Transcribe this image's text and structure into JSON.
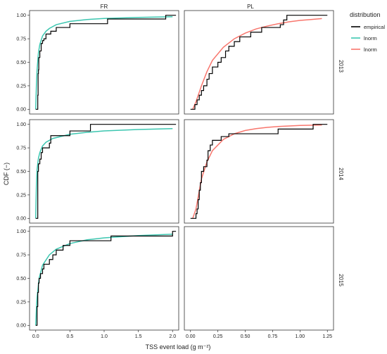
{
  "chart_data": {
    "type": "line",
    "xlabel": "TSS event load (g m⁻²)",
    "ylabel": "CDF (−)",
    "columns": [
      "FR",
      "PL"
    ],
    "rows": [
      "2013",
      "2014",
      "2015"
    ],
    "legend": {
      "title": "distribution",
      "placement": "right",
      "entries": [
        {
          "label": "empirical",
          "color": "#000000"
        },
        {
          "label": "lnorm",
          "color": "#3cc6b0"
        },
        {
          "label": "lnorm",
          "color": "#f8766d"
        }
      ]
    },
    "y_ticks": [
      "0.00",
      "0.25",
      "0.50",
      "0.75",
      "1.00"
    ],
    "ylim": [
      0,
      1
    ],
    "FR_x_ticks": [
      "0.0",
      "0.5",
      "1.0",
      "1.5",
      "2.0"
    ],
    "FR_xlim": [
      0,
      2
    ],
    "PL_x_ticks": [
      "0.00",
      "0.25",
      "0.50",
      "0.75",
      "1.00",
      "1.25"
    ],
    "PL_xlim": [
      0,
      1.25
    ],
    "panels": [
      {
        "column": "FR",
        "row": "2013",
        "fit_color": "#3cc6b0",
        "empirical": [
          [
            0.0,
            0.0
          ],
          [
            0.03,
            0.15
          ],
          [
            0.035,
            0.38
          ],
          [
            0.04,
            0.42
          ],
          [
            0.045,
            0.55
          ],
          [
            0.06,
            0.62
          ],
          [
            0.08,
            0.7
          ],
          [
            0.1,
            0.73
          ],
          [
            0.12,
            0.75
          ],
          [
            0.15,
            0.8
          ],
          [
            0.22,
            0.83
          ],
          [
            0.3,
            0.87
          ],
          [
            0.5,
            0.91
          ],
          [
            0.85,
            0.91
          ],
          [
            1.05,
            0.96
          ],
          [
            1.9,
            1.0
          ],
          [
            2.05,
            1.0
          ]
        ],
        "fit": [
          [
            0.0,
            0.0
          ],
          [
            0.01,
            0.25
          ],
          [
            0.02,
            0.42
          ],
          [
            0.04,
            0.6
          ],
          [
            0.06,
            0.69
          ],
          [
            0.1,
            0.78
          ],
          [
            0.15,
            0.83
          ],
          [
            0.2,
            0.86
          ],
          [
            0.3,
            0.9
          ],
          [
            0.5,
            0.935
          ],
          [
            0.75,
            0.955
          ],
          [
            1.0,
            0.966
          ],
          [
            1.5,
            0.977
          ],
          [
            2.0,
            0.985
          ]
        ]
      },
      {
        "column": "PL",
        "row": "2013",
        "fit_color": "#f8766d",
        "empirical": [
          [
            0.0,
            0.0
          ],
          [
            0.04,
            0.05
          ],
          [
            0.06,
            0.1
          ],
          [
            0.08,
            0.15
          ],
          [
            0.1,
            0.2
          ],
          [
            0.12,
            0.25
          ],
          [
            0.15,
            0.32
          ],
          [
            0.17,
            0.38
          ],
          [
            0.2,
            0.45
          ],
          [
            0.25,
            0.5
          ],
          [
            0.28,
            0.55
          ],
          [
            0.32,
            0.62
          ],
          [
            0.35,
            0.67
          ],
          [
            0.4,
            0.72
          ],
          [
            0.45,
            0.77
          ],
          [
            0.55,
            0.82
          ],
          [
            0.65,
            0.87
          ],
          [
            0.82,
            0.9
          ],
          [
            0.85,
            0.95
          ],
          [
            0.88,
            1.0
          ],
          [
            1.25,
            1.0
          ]
        ],
        "fit": [
          [
            0.02,
            0.0
          ],
          [
            0.05,
            0.08
          ],
          [
            0.1,
            0.25
          ],
          [
            0.15,
            0.4
          ],
          [
            0.2,
            0.52
          ],
          [
            0.3,
            0.66
          ],
          [
            0.4,
            0.75
          ],
          [
            0.5,
            0.81
          ],
          [
            0.6,
            0.855
          ],
          [
            0.7,
            0.885
          ],
          [
            0.8,
            0.91
          ],
          [
            0.9,
            0.93
          ],
          [
            1.0,
            0.945
          ],
          [
            1.1,
            0.955
          ],
          [
            1.2,
            0.965
          ]
        ]
      },
      {
        "column": "FR",
        "row": "2014",
        "fit_color": "#3cc6b0",
        "empirical": [
          [
            0.0,
            0.0
          ],
          [
            0.03,
            0.5
          ],
          [
            0.04,
            0.58
          ],
          [
            0.06,
            0.63
          ],
          [
            0.08,
            0.7
          ],
          [
            0.1,
            0.75
          ],
          [
            0.2,
            0.8
          ],
          [
            0.22,
            0.88
          ],
          [
            0.5,
            0.93
          ],
          [
            0.8,
            1.0
          ],
          [
            2.05,
            1.0
          ]
        ],
        "fit": [
          [
            0.0,
            0.0
          ],
          [
            0.01,
            0.35
          ],
          [
            0.02,
            0.52
          ],
          [
            0.04,
            0.64
          ],
          [
            0.06,
            0.7
          ],
          [
            0.1,
            0.77
          ],
          [
            0.15,
            0.81
          ],
          [
            0.25,
            0.85
          ],
          [
            0.5,
            0.895
          ],
          [
            0.75,
            0.915
          ],
          [
            1.0,
            0.93
          ],
          [
            1.5,
            0.945
          ],
          [
            2.0,
            0.955
          ]
        ]
      },
      {
        "column": "PL",
        "row": "2014",
        "fit_color": "#f8766d",
        "empirical": [
          [
            0.0,
            0.0
          ],
          [
            0.04,
            0.0
          ],
          [
            0.05,
            0.05
          ],
          [
            0.06,
            0.1
          ],
          [
            0.07,
            0.2
          ],
          [
            0.08,
            0.3
          ],
          [
            0.09,
            0.38
          ],
          [
            0.1,
            0.5
          ],
          [
            0.12,
            0.55
          ],
          [
            0.15,
            0.62
          ],
          [
            0.16,
            0.72
          ],
          [
            0.18,
            0.78
          ],
          [
            0.2,
            0.83
          ],
          [
            0.28,
            0.87
          ],
          [
            0.35,
            0.9
          ],
          [
            0.55,
            0.9
          ],
          [
            0.8,
            0.95
          ],
          [
            1.12,
            1.0
          ],
          [
            1.25,
            1.0
          ]
        ],
        "fit": [
          [
            0.02,
            0.0
          ],
          [
            0.05,
            0.1
          ],
          [
            0.1,
            0.42
          ],
          [
            0.15,
            0.6
          ],
          [
            0.2,
            0.72
          ],
          [
            0.3,
            0.84
          ],
          [
            0.4,
            0.9
          ],
          [
            0.5,
            0.935
          ],
          [
            0.6,
            0.955
          ],
          [
            0.7,
            0.968
          ],
          [
            0.8,
            0.977
          ],
          [
            1.0,
            0.988
          ],
          [
            1.2,
            0.993
          ]
        ]
      },
      {
        "column": "FR",
        "row": "2015",
        "fit_color": "#3cc6b0",
        "empirical": [
          [
            0.0,
            0.0
          ],
          [
            0.02,
            0.2
          ],
          [
            0.03,
            0.35
          ],
          [
            0.04,
            0.45
          ],
          [
            0.05,
            0.5
          ],
          [
            0.07,
            0.55
          ],
          [
            0.1,
            0.6
          ],
          [
            0.12,
            0.65
          ],
          [
            0.2,
            0.7
          ],
          [
            0.25,
            0.75
          ],
          [
            0.3,
            0.8
          ],
          [
            0.4,
            0.85
          ],
          [
            0.5,
            0.9
          ],
          [
            0.6,
            0.9
          ],
          [
            0.8,
            0.9
          ],
          [
            1.1,
            0.95
          ],
          [
            2.0,
            1.0
          ],
          [
            2.05,
            1.0
          ]
        ],
        "fit": [
          [
            0.0,
            0.0
          ],
          [
            0.01,
            0.18
          ],
          [
            0.02,
            0.3
          ],
          [
            0.05,
            0.5
          ],
          [
            0.1,
            0.64
          ],
          [
            0.2,
            0.75
          ],
          [
            0.3,
            0.81
          ],
          [
            0.5,
            0.87
          ],
          [
            0.75,
            0.91
          ],
          [
            1.0,
            0.93
          ],
          [
            1.5,
            0.955
          ],
          [
            2.0,
            0.97
          ]
        ]
      },
      {
        "column": "PL",
        "row": "2015",
        "fit_color": "#f8766d",
        "empirical": [],
        "fit": []
      }
    ]
  }
}
